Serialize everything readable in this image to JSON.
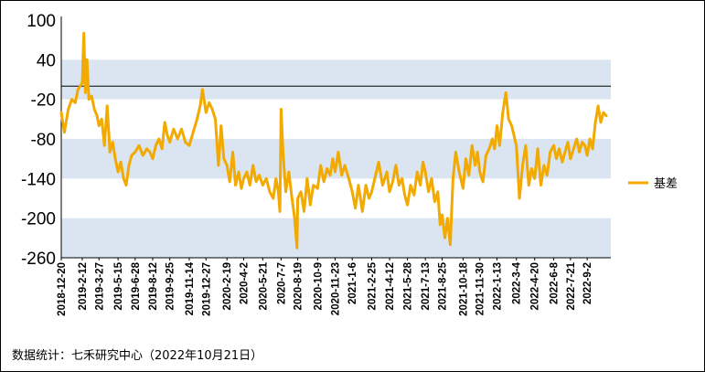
{
  "chart_data": {
    "type": "line",
    "title": "",
    "xlabel": "",
    "ylabel": "",
    "ylim": [
      -260,
      100
    ],
    "y_ticks": [
      100,
      40,
      -20,
      -80,
      -140,
      -200,
      -260
    ],
    "x_range": [
      "2018-12-20",
      "2022-10-21"
    ],
    "x_ticks": [
      "2018-12-20",
      "2019-2-12",
      "2019-3-27",
      "2019-5-15",
      "2019-6-28",
      "2019-8-12",
      "2019-9-25",
      "2019-11-14",
      "2019-12-27",
      "2020-2-19",
      "2020-4-2",
      "2020-5-21",
      "2020-7-7",
      "2020-8-19",
      "2020-10-9",
      "2020-11-23",
      "2021-1-6",
      "2021-2-25",
      "2021-4-12",
      "2021-5-28",
      "2021-7-13",
      "2021-8-25",
      "2021-10-18",
      "2021-11-30",
      "2022-1-13",
      "2022-3-4",
      "2022-4-20",
      "2022-6-8",
      "2022-7-21",
      "2022-9-2"
    ],
    "band_colors": [
      "#dbe5f1",
      "#ffffff"
    ],
    "bands": [
      [
        -260,
        -200
      ],
      [
        -140,
        -80
      ],
      [
        -20,
        40
      ]
    ],
    "reference_line": 0,
    "grid": false,
    "legend_position": "right",
    "series": [
      {
        "name": "基差",
        "color": "#f2a900",
        "points": [
          [
            "2018-12-20",
            -40
          ],
          [
            "2018-12-28",
            -70
          ],
          [
            "2019-01-07",
            -35
          ],
          [
            "2019-01-16",
            -20
          ],
          [
            "2019-01-25",
            -25
          ],
          [
            "2019-02-01",
            -5
          ],
          [
            "2019-02-12",
            5
          ],
          [
            "2019-02-16",
            80
          ],
          [
            "2019-02-20",
            -10
          ],
          [
            "2019-02-24",
            40
          ],
          [
            "2019-03-01",
            -20
          ],
          [
            "2019-03-08",
            -15
          ],
          [
            "2019-03-15",
            -35
          ],
          [
            "2019-03-22",
            -45
          ],
          [
            "2019-03-27",
            -60
          ],
          [
            "2019-04-03",
            -50
          ],
          [
            "2019-04-10",
            -90
          ],
          [
            "2019-04-17",
            -30
          ],
          [
            "2019-04-24",
            -100
          ],
          [
            "2019-05-01",
            -85
          ],
          [
            "2019-05-08",
            -110
          ],
          [
            "2019-05-15",
            -130
          ],
          [
            "2019-05-22",
            -115
          ],
          [
            "2019-05-29",
            -140
          ],
          [
            "2019-06-05",
            -150
          ],
          [
            "2019-06-12",
            -120
          ],
          [
            "2019-06-19",
            -105
          ],
          [
            "2019-06-28",
            -100
          ],
          [
            "2019-07-08",
            -90
          ],
          [
            "2019-07-18",
            -105
          ],
          [
            "2019-07-28",
            -95
          ],
          [
            "2019-08-05",
            -100
          ],
          [
            "2019-08-12",
            -110
          ],
          [
            "2019-08-20",
            -90
          ],
          [
            "2019-08-28",
            -80
          ],
          [
            "2019-09-05",
            -95
          ],
          [
            "2019-09-12",
            -55
          ],
          [
            "2019-09-19",
            -75
          ],
          [
            "2019-09-25",
            -85
          ],
          [
            "2019-10-05",
            -65
          ],
          [
            "2019-10-15",
            -80
          ],
          [
            "2019-10-25",
            -65
          ],
          [
            "2019-11-04",
            -85
          ],
          [
            "2019-11-14",
            -90
          ],
          [
            "2019-11-24",
            -70
          ],
          [
            "2019-12-04",
            -50
          ],
          [
            "2019-12-12",
            -30
          ],
          [
            "2019-12-18",
            -5
          ],
          [
            "2019-12-27",
            -40
          ],
          [
            "2020-01-04",
            -25
          ],
          [
            "2020-01-12",
            -35
          ],
          [
            "2020-01-20",
            -50
          ],
          [
            "2020-01-28",
            -120
          ],
          [
            "2020-02-04",
            -60
          ],
          [
            "2020-02-11",
            -110
          ],
          [
            "2020-02-19",
            -120
          ],
          [
            "2020-02-26",
            -145
          ],
          [
            "2020-03-05",
            -100
          ],
          [
            "2020-03-12",
            -150
          ],
          [
            "2020-03-20",
            -130
          ],
          [
            "2020-03-27",
            -155
          ],
          [
            "2020-04-02",
            -140
          ],
          [
            "2020-04-10",
            -130
          ],
          [
            "2020-04-18",
            -150
          ],
          [
            "2020-04-26",
            -120
          ],
          [
            "2020-05-04",
            -145
          ],
          [
            "2020-05-12",
            -135
          ],
          [
            "2020-05-21",
            -150
          ],
          [
            "2020-05-30",
            -140
          ],
          [
            "2020-06-08",
            -160
          ],
          [
            "2020-06-17",
            -170
          ],
          [
            "2020-06-24",
            -140
          ],
          [
            "2020-06-30",
            -160
          ],
          [
            "2020-07-04",
            -190
          ],
          [
            "2020-07-07",
            -35
          ],
          [
            "2020-07-12",
            -100
          ],
          [
            "2020-07-19",
            -160
          ],
          [
            "2020-07-27",
            -130
          ],
          [
            "2020-08-04",
            -170
          ],
          [
            "2020-08-11",
            -200
          ],
          [
            "2020-08-17",
            -245
          ],
          [
            "2020-08-19",
            -170
          ],
          [
            "2020-08-27",
            -160
          ],
          [
            "2020-09-04",
            -190
          ],
          [
            "2020-09-12",
            -140
          ],
          [
            "2020-09-20",
            -180
          ],
          [
            "2020-09-28",
            -150
          ],
          [
            "2020-10-09",
            -155
          ],
          [
            "2020-10-17",
            -120
          ],
          [
            "2020-10-25",
            -145
          ],
          [
            "2020-11-02",
            -125
          ],
          [
            "2020-11-10",
            -135
          ],
          [
            "2020-11-17",
            -110
          ],
          [
            "2020-11-23",
            -130
          ],
          [
            "2020-12-01",
            -100
          ],
          [
            "2020-12-10",
            -135
          ],
          [
            "2020-12-18",
            -120
          ],
          [
            "2020-12-28",
            -140
          ],
          [
            "2021-01-06",
            -160
          ],
          [
            "2021-01-14",
            -185
          ],
          [
            "2021-01-22",
            -150
          ],
          [
            "2021-02-01",
            -190
          ],
          [
            "2021-02-10",
            -150
          ],
          [
            "2021-02-18",
            -170
          ],
          [
            "2021-02-25",
            -160
          ],
          [
            "2021-03-05",
            -140
          ],
          [
            "2021-03-15",
            -115
          ],
          [
            "2021-03-25",
            -150
          ],
          [
            "2021-04-05",
            -130
          ],
          [
            "2021-04-12",
            -160
          ],
          [
            "2021-04-20",
            -145
          ],
          [
            "2021-04-28",
            -120
          ],
          [
            "2021-05-06",
            -150
          ],
          [
            "2021-05-14",
            -140
          ],
          [
            "2021-05-21",
            -165
          ],
          [
            "2021-05-28",
            -180
          ],
          [
            "2021-06-05",
            -150
          ],
          [
            "2021-06-14",
            -165
          ],
          [
            "2021-06-22",
            -130
          ],
          [
            "2021-06-30",
            -150
          ],
          [
            "2021-07-07",
            -115
          ],
          [
            "2021-07-13",
            -130
          ],
          [
            "2021-07-21",
            -160
          ],
          [
            "2021-07-29",
            -140
          ],
          [
            "2021-08-06",
            -175
          ],
          [
            "2021-08-14",
            -160
          ],
          [
            "2021-08-20",
            -210
          ],
          [
            "2021-08-25",
            -195
          ],
          [
            "2021-09-01",
            -230
          ],
          [
            "2021-09-08",
            -200
          ],
          [
            "2021-09-15",
            -240
          ],
          [
            "2021-09-22",
            -140
          ],
          [
            "2021-09-29",
            -100
          ],
          [
            "2021-10-08",
            -130
          ],
          [
            "2021-10-18",
            -155
          ],
          [
            "2021-10-25",
            -110
          ],
          [
            "2021-11-02",
            -135
          ],
          [
            "2021-11-10",
            -90
          ],
          [
            "2021-11-18",
            -120
          ],
          [
            "2021-11-24",
            -100
          ],
          [
            "2021-11-30",
            -130
          ],
          [
            "2021-12-08",
            -145
          ],
          [
            "2021-12-16",
            -105
          ],
          [
            "2021-12-24",
            -95
          ],
          [
            "2022-01-01",
            -80
          ],
          [
            "2022-01-07",
            -95
          ],
          [
            "2022-01-13",
            -60
          ],
          [
            "2022-01-20",
            -90
          ],
          [
            "2022-01-28",
            -40
          ],
          [
            "2022-02-05",
            -10
          ],
          [
            "2022-02-12",
            -50
          ],
          [
            "2022-02-20",
            -60
          ],
          [
            "2022-03-04",
            -90
          ],
          [
            "2022-03-12",
            -170
          ],
          [
            "2022-03-20",
            -120
          ],
          [
            "2022-03-28",
            -90
          ],
          [
            "2022-04-05",
            -150
          ],
          [
            "2022-04-12",
            -125
          ],
          [
            "2022-04-20",
            -140
          ],
          [
            "2022-04-28",
            -95
          ],
          [
            "2022-05-06",
            -150
          ],
          [
            "2022-05-14",
            -120
          ],
          [
            "2022-05-22",
            -135
          ],
          [
            "2022-05-30",
            -100
          ],
          [
            "2022-06-08",
            -90
          ],
          [
            "2022-06-15",
            -110
          ],
          [
            "2022-06-22",
            -95
          ],
          [
            "2022-06-30",
            -115
          ],
          [
            "2022-07-07",
            -100
          ],
          [
            "2022-07-14",
            -85
          ],
          [
            "2022-07-21",
            -110
          ],
          [
            "2022-07-29",
            -95
          ],
          [
            "2022-08-06",
            -80
          ],
          [
            "2022-08-13",
            -100
          ],
          [
            "2022-08-20",
            -85
          ],
          [
            "2022-08-27",
            -90
          ],
          [
            "2022-09-02",
            -105
          ],
          [
            "2022-09-09",
            -80
          ],
          [
            "2022-09-16",
            -95
          ],
          [
            "2022-09-23",
            -55
          ],
          [
            "2022-09-30",
            -30
          ],
          [
            "2022-10-07",
            -55
          ],
          [
            "2022-10-14",
            -40
          ],
          [
            "2022-10-21",
            -45
          ]
        ]
      }
    ]
  },
  "source_note": "数据统计：七禾研究中心（2022年10月21日）"
}
